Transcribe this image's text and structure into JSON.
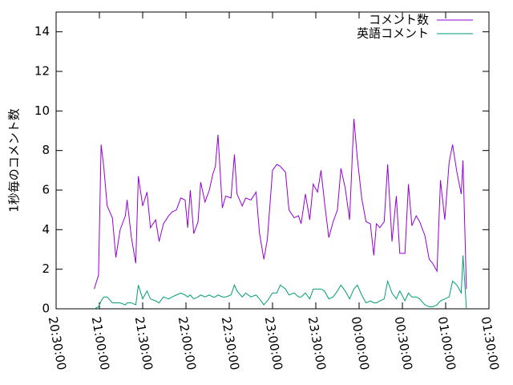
{
  "chart_data": {
    "type": "line",
    "ylabel": "1秒毎のコメント数",
    "x": [
      20.94,
      20.99,
      21.02,
      21.05,
      21.09,
      21.15,
      21.19,
      21.24,
      21.3,
      21.32,
      21.37,
      21.42,
      21.45,
      21.5,
      21.55,
      21.59,
      21.65,
      21.69,
      21.74,
      21.8,
      21.84,
      21.89,
      21.94,
      21.99,
      22.02,
      22.05,
      22.09,
      22.14,
      22.17,
      22.22,
      22.27,
      22.31,
      22.34,
      22.37,
      22.42,
      22.46,
      22.52,
      22.56,
      22.59,
      22.65,
      22.69,
      22.75,
      22.81,
      22.85,
      22.9,
      22.94,
      23.0,
      23.05,
      23.09,
      23.15,
      23.19,
      23.25,
      23.3,
      23.33,
      23.38,
      23.43,
      23.47,
      23.52,
      23.56,
      23.6,
      23.65,
      23.7,
      23.75,
      23.79,
      23.84,
      23.89,
      23.94,
      23.98,
      24.03,
      24.08,
      24.13,
      24.17,
      24.2,
      24.24,
      24.29,
      24.33,
      24.38,
      24.43,
      24.47,
      24.53,
      24.57,
      24.61,
      24.66,
      24.7,
      24.76,
      24.81,
      24.85,
      24.9,
      24.94,
      24.99,
      25.04,
      25.08,
      25.13,
      25.18,
      25.2,
      25.24
    ],
    "series": [
      {
        "name": "コメント数",
        "color": "#9400d3",
        "values": [
          1.0,
          1.7,
          8.3,
          7.2,
          5.2,
          4.6,
          2.6,
          4.0,
          4.7,
          5.5,
          3.6,
          2.3,
          6.7,
          5.2,
          5.9,
          4.1,
          4.5,
          3.4,
          4.3,
          4.7,
          4.9,
          5.0,
          5.6,
          5.5,
          4.1,
          6.0,
          3.8,
          4.4,
          6.4,
          5.4,
          6.0,
          6.8,
          7.2,
          8.8,
          5.1,
          5.7,
          5.6,
          7.8,
          5.8,
          5.2,
          5.6,
          5.5,
          5.9,
          3.8,
          2.5,
          3.5,
          7.0,
          7.3,
          7.2,
          6.9,
          5.0,
          4.6,
          4.7,
          4.3,
          5.8,
          4.5,
          6.3,
          5.9,
          7.0,
          5.4,
          3.6,
          4.4,
          5.0,
          7.1,
          6.1,
          4.5,
          9.6,
          7.6,
          5.6,
          4.4,
          4.3,
          2.7,
          4.3,
          4.1,
          4.4,
          7.3,
          3.4,
          5.7,
          2.8,
          2.8,
          6.3,
          4.2,
          4.7,
          4.4,
          3.7,
          2.5,
          2.3,
          1.9,
          6.5,
          4.5,
          7.4,
          8.3,
          6.9,
          5.8,
          7.5,
          1.0
        ]
      },
      {
        "name": "英語コメント",
        "color": "#009e73",
        "values": [
          0,
          0.1,
          0.4,
          0.6,
          0.6,
          0.3,
          0.3,
          0.3,
          0.2,
          0.3,
          0.3,
          0.2,
          1.2,
          0.5,
          0.9,
          0.5,
          0.4,
          0.3,
          0.6,
          0.5,
          0.6,
          0.7,
          0.8,
          0.7,
          0.6,
          0.7,
          0.5,
          0.6,
          0.7,
          0.6,
          0.7,
          0.6,
          0.6,
          0.7,
          0.6,
          0.6,
          0.7,
          1.2,
          0.9,
          0.6,
          0.8,
          0.6,
          0.7,
          0.5,
          0.2,
          0.4,
          0.8,
          0.8,
          1.2,
          1.0,
          0.7,
          0.8,
          0.6,
          0.6,
          0.8,
          0.5,
          1.0,
          1.0,
          1.0,
          0.9,
          0.5,
          0.6,
          0.9,
          1.2,
          0.9,
          0.5,
          1.0,
          1.2,
          0.7,
          0.3,
          0.4,
          0.3,
          0.3,
          0.4,
          0.5,
          1.4,
          0.8,
          0.5,
          0.9,
          0.4,
          0.8,
          0.6,
          0.6,
          0.5,
          0.2,
          0.1,
          0.1,
          0.2,
          0.4,
          0.5,
          0.6,
          1.4,
          1.2,
          0.8,
          2.7,
          0
        ]
      }
    ],
    "xlim": [
      20.5,
      25.5
    ],
    "xticks": [
      {
        "value": 20.5,
        "label": "20:30:00"
      },
      {
        "value": 21,
        "label": "21:00:00"
      },
      {
        "value": 21.5,
        "label": "21:30:00"
      },
      {
        "value": 22,
        "label": "22:00:00"
      },
      {
        "value": 22.5,
        "label": "22:30:00"
      },
      {
        "value": 23,
        "label": "23:00:00"
      },
      {
        "value": 23.5,
        "label": "23:30:00"
      },
      {
        "value": 24,
        "label": "00:00:00"
      },
      {
        "value": 24.5,
        "label": "00:30:00"
      },
      {
        "value": 25,
        "label": "01:00:00"
      },
      {
        "value": 25.5,
        "label": "01:30:00"
      }
    ],
    "ylim": [
      0,
      15
    ],
    "yticks": [
      0,
      2,
      4,
      6,
      8,
      10,
      12,
      14
    ],
    "legend": "top-right"
  }
}
